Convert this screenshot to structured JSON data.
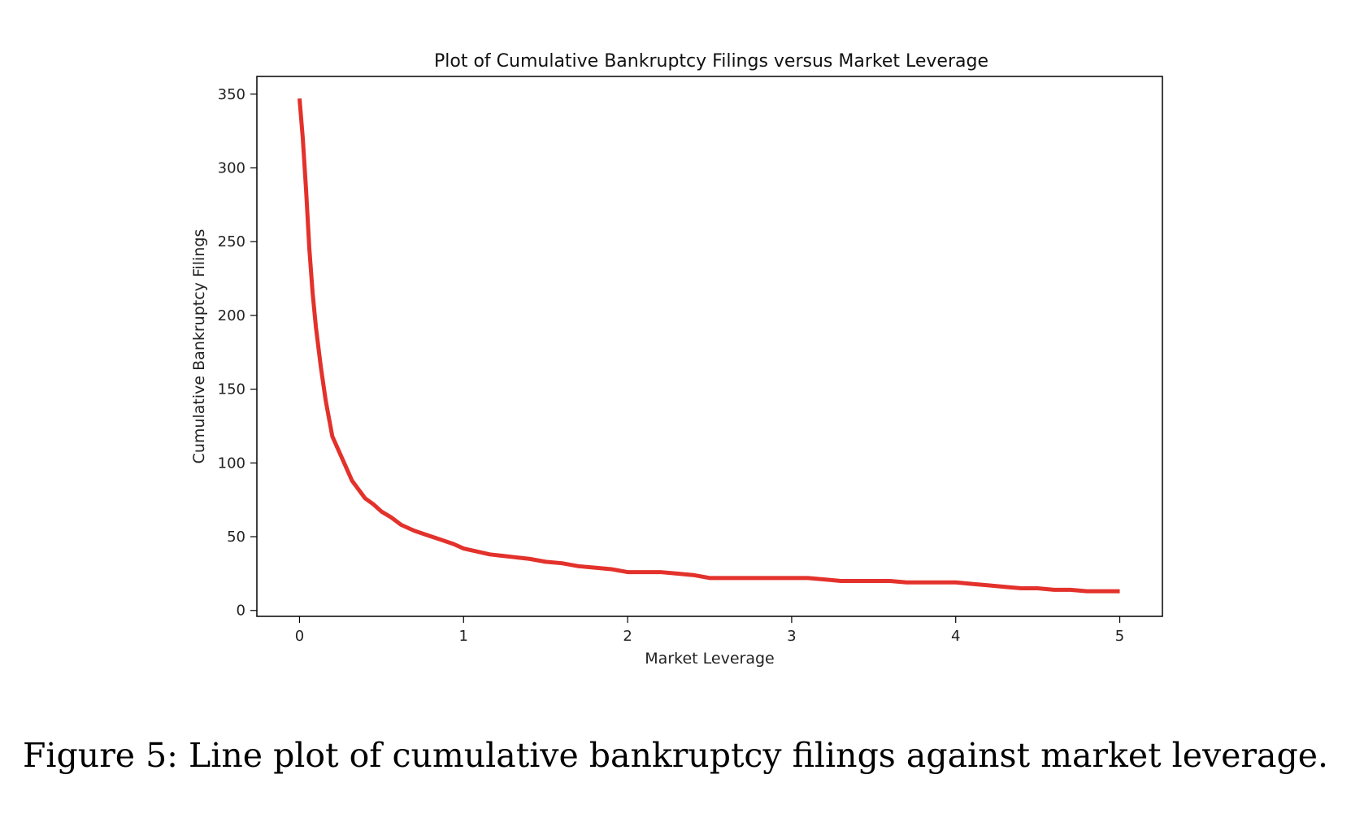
{
  "caption": "Figure 5: Line plot of cumulative bankruptcy filings against market leverage.",
  "chart_data": {
    "type": "line",
    "title": "Plot of Cumulative Bankruptcy Filings versus Market Leverage",
    "xlabel": "Market Leverage",
    "ylabel": "Cumulative Bankruptcy Filings",
    "xlim": [
      -0.26,
      5.26
    ],
    "ylim": [
      -4,
      362
    ],
    "xticks": [
      0,
      1,
      2,
      3,
      4,
      5
    ],
    "yticks": [
      0,
      50,
      100,
      150,
      200,
      250,
      300,
      350
    ],
    "grid": false,
    "line_color": "#e3312b",
    "series": [
      {
        "x": [
          0,
          0.02,
          0.04,
          0.06,
          0.08,
          0.1,
          0.13,
          0.16,
          0.2,
          0.24,
          0.28,
          0.32,
          0.36,
          0.4,
          0.45,
          0.5,
          0.56,
          0.62,
          0.7,
          0.78,
          0.86,
          0.94,
          1.0,
          1.08,
          1.16,
          1.24,
          1.32,
          1.4,
          1.5,
          1.6,
          1.7,
          1.8,
          1.9,
          2.0,
          2.1,
          2.2,
          2.3,
          2.4,
          2.5,
          2.6,
          2.7,
          2.8,
          2.9,
          3.0,
          3.1,
          3.2,
          3.3,
          3.4,
          3.5,
          3.6,
          3.7,
          3.8,
          3.9,
          4.0,
          4.1,
          4.2,
          4.3,
          4.4,
          4.5,
          4.6,
          4.7,
          4.8,
          4.9,
          5.0
        ],
        "y": [
          347,
          320,
          285,
          245,
          215,
          192,
          165,
          142,
          118,
          108,
          98,
          88,
          82,
          76,
          72,
          67,
          63,
          58,
          54,
          51,
          48,
          45,
          42,
          40,
          38,
          37,
          36,
          35,
          33,
          32,
          30,
          29,
          28,
          26,
          26,
          26,
          25,
          24,
          22,
          22,
          22,
          22,
          22,
          22,
          22,
          21,
          20,
          20,
          20,
          20,
          19,
          19,
          19,
          19,
          18,
          17,
          16,
          15,
          15,
          14,
          14,
          13,
          13,
          13
        ]
      }
    ]
  }
}
